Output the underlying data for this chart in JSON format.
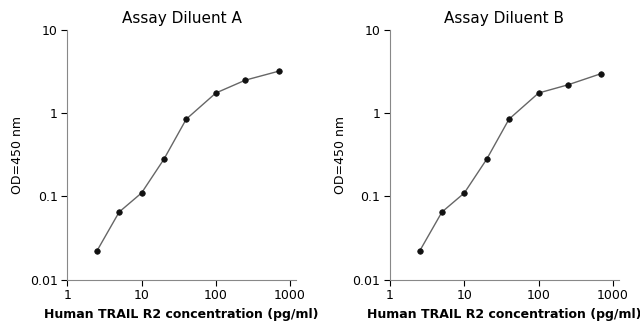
{
  "panel_A": {
    "title": "Assay Diluent A",
    "x": [
      2.5,
      5,
      10,
      20,
      40,
      100,
      250,
      700
    ],
    "y": [
      0.022,
      0.065,
      0.11,
      0.28,
      0.85,
      1.75,
      2.5,
      3.2
    ]
  },
  "panel_B": {
    "title": "Assay Diluent B",
    "x": [
      2.5,
      5,
      10,
      20,
      40,
      100,
      250,
      700
    ],
    "y": [
      0.022,
      0.065,
      0.11,
      0.28,
      0.85,
      1.75,
      2.2,
      3.0
    ]
  },
  "xlabel": "Human TRAIL R2 concentration (pg/ml)",
  "ylabel": "OD=450 nm",
  "xlim": [
    1,
    1200
  ],
  "ylim": [
    0.01,
    10
  ],
  "line_color": "#666666",
  "marker_color": "#111111",
  "marker_size": 4,
  "bg_color": "#ffffff",
  "title_fontsize": 11,
  "label_fontsize": 9,
  "tick_fontsize": 9,
  "yticks": [
    0.01,
    0.1,
    1,
    10
  ],
  "ytick_labels": [
    "0.01",
    "0.1",
    "1",
    "10"
  ],
  "xticks": [
    1,
    10,
    100,
    1000
  ],
  "xtick_labels": [
    "1",
    "10",
    "100",
    "1000"
  ]
}
